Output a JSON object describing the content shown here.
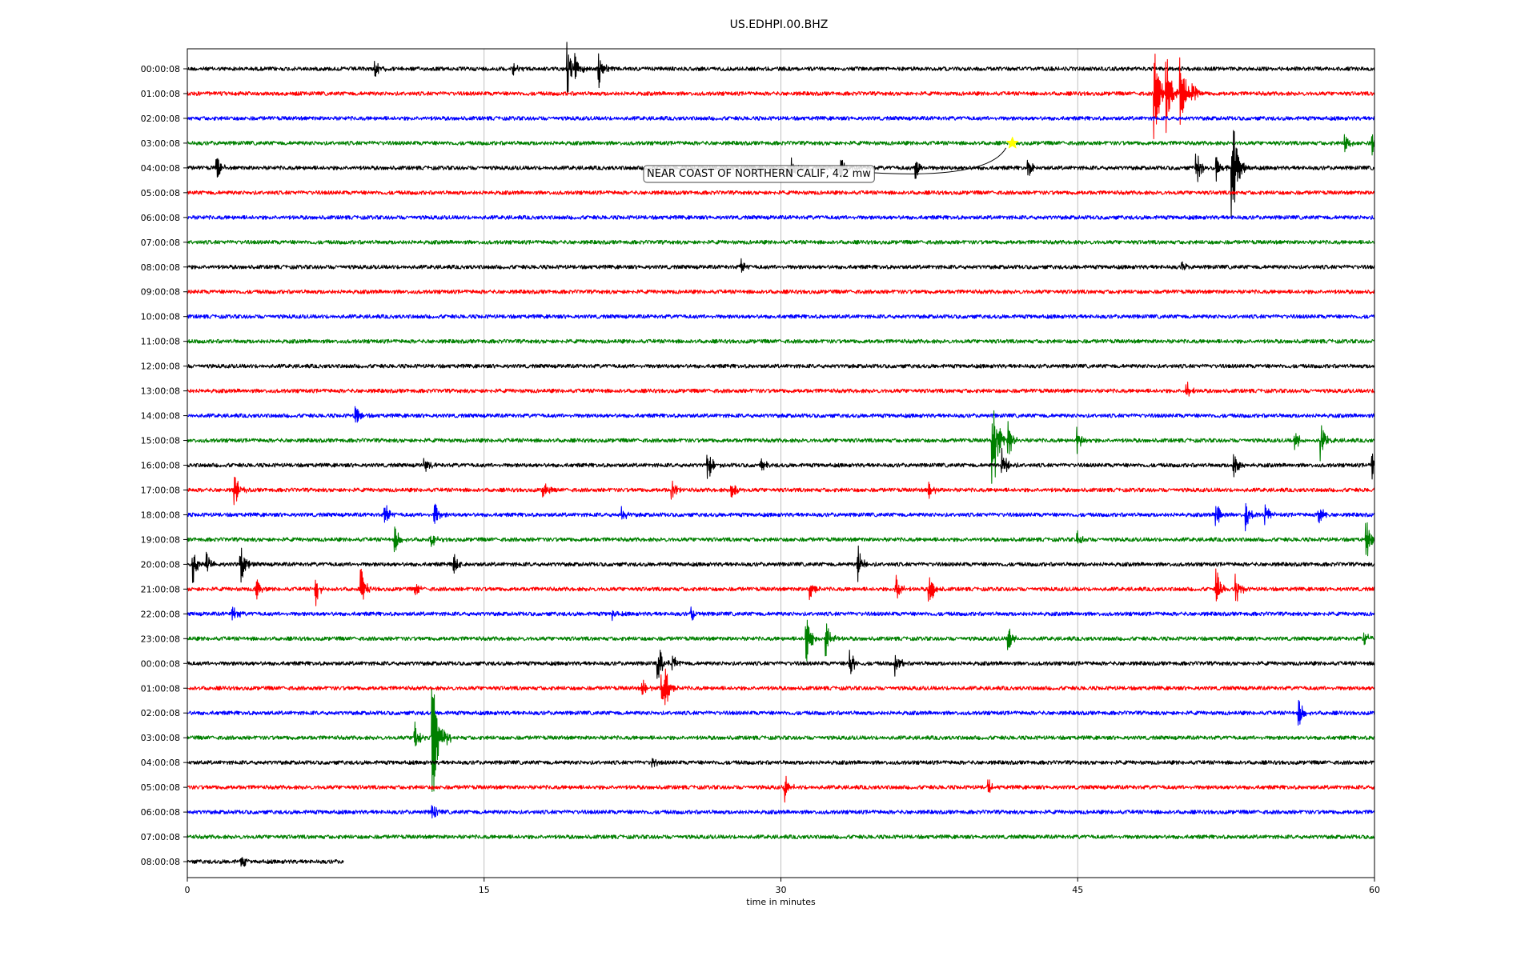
{
  "chart_data": {
    "type": "line",
    "title": "US.EDHPI.00.BHZ",
    "xlabel": "time in minutes",
    "ylabel": "",
    "xlim": [
      0,
      60
    ],
    "x_ticks": [
      0,
      15,
      30,
      45,
      60
    ],
    "x_tick_labels": [
      "0",
      "15",
      "30",
      "45",
      "60"
    ],
    "grid": "vertical at x ticks",
    "colors": [
      "#000000",
      "#ff0000",
      "#0000ff",
      "#008000"
    ],
    "rows": [
      {
        "label": "00:00:08",
        "color": "#000000",
        "end": 60,
        "events": [
          [
            9.5,
            0.4
          ],
          [
            16.5,
            0.3
          ],
          [
            19.2,
            1.2
          ],
          [
            19.6,
            0.7
          ],
          [
            20.8,
            0.9
          ]
        ]
      },
      {
        "label": "01:00:08",
        "color": "#ff0000",
        "end": 60,
        "events": [
          [
            48.9,
            2.4
          ],
          [
            49.5,
            1.7
          ],
          [
            50.2,
            1.9
          ],
          [
            50.8,
            0.6
          ]
        ]
      },
      {
        "label": "02:00:08",
        "color": "#0000ff",
        "end": 60,
        "events": []
      },
      {
        "label": "03:00:08",
        "color": "#008000",
        "end": 60,
        "events": [
          [
            58.5,
            0.4
          ],
          [
            59.9,
            0.5
          ]
        ]
      },
      {
        "label": "04:00:08",
        "color": "#000000",
        "end": 60,
        "events": [
          [
            1.5,
            0.5
          ],
          [
            30.5,
            0.6
          ],
          [
            33.0,
            0.5
          ],
          [
            36.8,
            0.5
          ],
          [
            42.5,
            0.4
          ],
          [
            51.0,
            0.8
          ],
          [
            52.0,
            0.6
          ],
          [
            52.8,
            3.0
          ]
        ]
      },
      {
        "label": "05:00:08",
        "color": "#ff0000",
        "end": 60,
        "events": []
      },
      {
        "label": "06:00:08",
        "color": "#0000ff",
        "end": 60,
        "events": []
      },
      {
        "label": "07:00:08",
        "color": "#008000",
        "end": 60,
        "events": []
      },
      {
        "label": "08:00:08",
        "color": "#000000",
        "end": 60,
        "events": [
          [
            28.0,
            0.3
          ],
          [
            50.3,
            0.2
          ]
        ]
      },
      {
        "label": "09:00:08",
        "color": "#ff0000",
        "end": 60,
        "events": []
      },
      {
        "label": "10:00:08",
        "color": "#0000ff",
        "end": 60,
        "events": []
      },
      {
        "label": "11:00:08",
        "color": "#008000",
        "end": 60,
        "events": []
      },
      {
        "label": "12:00:08",
        "color": "#000000",
        "end": 60,
        "events": []
      },
      {
        "label": "13:00:08",
        "color": "#ff0000",
        "end": 60,
        "events": [
          [
            50.5,
            0.4
          ]
        ]
      },
      {
        "label": "14:00:08",
        "color": "#0000ff",
        "end": 60,
        "events": [
          [
            8.5,
            0.4
          ]
        ]
      },
      {
        "label": "15:00:08",
        "color": "#008000",
        "end": 60,
        "events": [
          [
            40.7,
            3.0
          ],
          [
            41.5,
            0.8
          ],
          [
            45.0,
            0.5
          ],
          [
            56.0,
            0.5
          ],
          [
            57.3,
            0.9
          ]
        ]
      },
      {
        "label": "16:00:08",
        "color": "#000000",
        "end": 60,
        "events": [
          [
            12.0,
            0.4
          ],
          [
            26.3,
            0.8
          ],
          [
            29.0,
            0.4
          ],
          [
            41.2,
            0.9
          ],
          [
            52.9,
            0.6
          ],
          [
            59.9,
            0.6
          ]
        ]
      },
      {
        "label": "17:00:08",
        "color": "#ff0000",
        "end": 60,
        "events": [
          [
            2.4,
            0.8
          ],
          [
            18.0,
            0.4
          ],
          [
            24.5,
            0.4
          ],
          [
            27.5,
            0.5
          ],
          [
            37.5,
            0.4
          ]
        ]
      },
      {
        "label": "18:00:08",
        "color": "#0000ff",
        "end": 60,
        "events": [
          [
            10.0,
            0.5
          ],
          [
            12.5,
            0.5
          ],
          [
            22.0,
            0.3
          ],
          [
            52.0,
            0.5
          ],
          [
            53.5,
            0.6
          ],
          [
            54.5,
            0.5
          ],
          [
            57.2,
            0.4
          ]
        ]
      },
      {
        "label": "19:00:08",
        "color": "#008000",
        "end": 60,
        "events": [
          [
            10.5,
            0.5
          ],
          [
            12.3,
            0.4
          ],
          [
            59.6,
            1.0
          ],
          [
            45.0,
            0.3
          ]
        ]
      },
      {
        "label": "20:00:08",
        "color": "#000000",
        "end": 60,
        "events": [
          [
            0.3,
            0.7
          ],
          [
            1.0,
            0.5
          ],
          [
            2.7,
            0.8
          ],
          [
            13.5,
            0.4
          ],
          [
            33.9,
            0.9
          ]
        ]
      },
      {
        "label": "21:00:08",
        "color": "#ff0000",
        "end": 60,
        "events": [
          [
            3.5,
            0.5
          ],
          [
            6.5,
            0.7
          ],
          [
            8.8,
            0.8
          ],
          [
            11.5,
            0.3
          ],
          [
            31.5,
            0.5
          ],
          [
            35.8,
            0.6
          ],
          [
            37.5,
            0.7
          ],
          [
            52.0,
            0.9
          ],
          [
            53.0,
            0.7
          ]
        ]
      },
      {
        "label": "22:00:08",
        "color": "#0000ff",
        "end": 60,
        "events": [
          [
            2.3,
            0.4
          ],
          [
            21.5,
            0.3
          ],
          [
            25.5,
            0.3
          ]
        ]
      },
      {
        "label": "23:00:08",
        "color": "#008000",
        "end": 60,
        "events": [
          [
            31.3,
            0.9
          ],
          [
            32.3,
            0.8
          ],
          [
            41.5,
            0.6
          ],
          [
            59.5,
            0.3
          ]
        ]
      },
      {
        "label": "00:00:08",
        "color": "#000000",
        "end": 60,
        "events": [
          [
            23.8,
            0.8
          ],
          [
            24.5,
            0.4
          ],
          [
            33.5,
            0.7
          ],
          [
            35.8,
            0.5
          ]
        ]
      },
      {
        "label": "01:00:08",
        "color": "#ff0000",
        "end": 60,
        "events": [
          [
            23.0,
            0.5
          ],
          [
            24.0,
            0.6
          ],
          [
            24.2,
            0.9
          ]
        ]
      },
      {
        "label": "02:00:08",
        "color": "#0000ff",
        "end": 60,
        "events": [
          [
            56.2,
            0.5
          ]
        ]
      },
      {
        "label": "03:00:08",
        "color": "#008000",
        "end": 60,
        "events": [
          [
            11.5,
            0.7
          ],
          [
            12.4,
            3.2
          ],
          [
            13.0,
            0.5
          ]
        ]
      },
      {
        "label": "04:00:08",
        "color": "#000000",
        "end": 60,
        "events": [
          [
            23.5,
            0.3
          ]
        ]
      },
      {
        "label": "05:00:08",
        "color": "#ff0000",
        "end": 60,
        "events": [
          [
            30.2,
            0.6
          ],
          [
            40.5,
            0.3
          ]
        ]
      },
      {
        "label": "06:00:08",
        "color": "#0000ff",
        "end": 60,
        "events": [
          [
            12.4,
            0.3
          ]
        ]
      },
      {
        "label": "07:00:08",
        "color": "#008000",
        "end": 60,
        "events": []
      },
      {
        "label": "08:00:08",
        "color": "#000000",
        "end": 7.9,
        "events": [
          [
            2.7,
            0.3
          ]
        ]
      }
    ],
    "annotations": [
      {
        "text": "NEAR COAST OF NORTHERN CALIF, 4.2 mw",
        "row": 3,
        "x": 41.7,
        "marker": "star",
        "marker_color": "#ffff00"
      }
    ]
  }
}
